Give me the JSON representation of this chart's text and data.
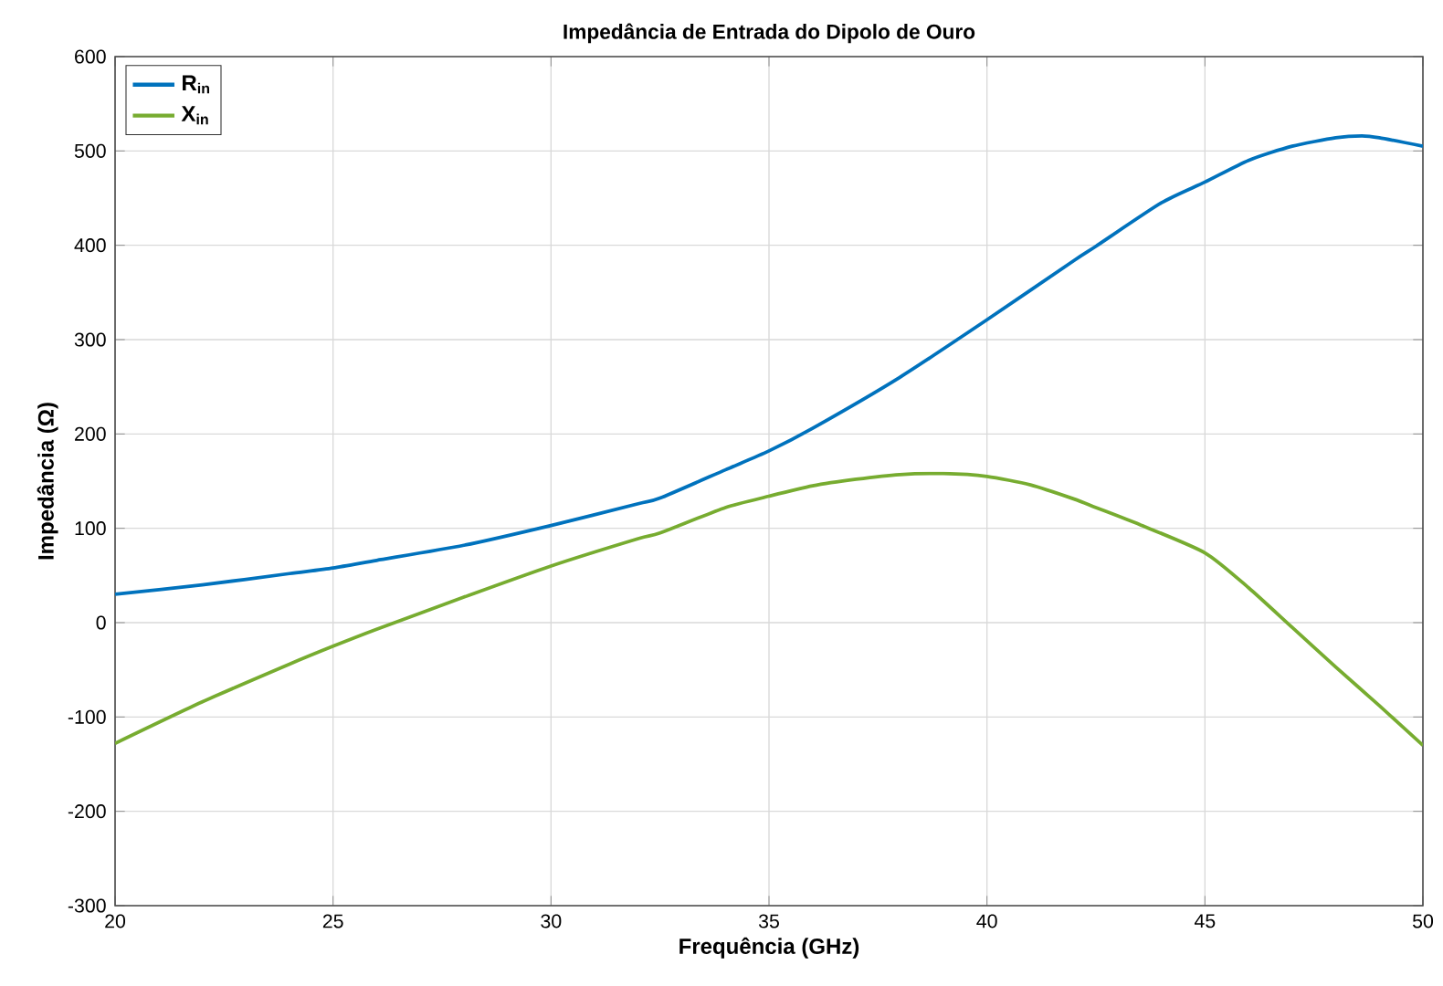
{
  "chart_data": {
    "type": "line",
    "title": "Impedância de Entrada do Dipolo de Ouro",
    "xlabel": "Frequência (GHz)",
    "ylabel": "Impedância (Ω)",
    "xlim": [
      20,
      50
    ],
    "ylim": [
      -300,
      600
    ],
    "xticks": [
      20,
      25,
      30,
      35,
      40,
      45,
      50
    ],
    "yticks": [
      -300,
      -200,
      -100,
      0,
      100,
      200,
      300,
      400,
      500,
      600
    ],
    "grid": true,
    "legend": "top left",
    "marker": "none",
    "line_style": "solid",
    "series": [
      {
        "name": "R$_{in}$",
        "color": "#0072bd",
        "x": [
          20,
          22,
          24,
          25,
          26,
          28,
          30,
          32,
          32.5,
          34,
          35,
          36,
          38,
          40,
          42,
          42.5,
          44,
          45,
          46,
          47,
          48,
          48.6,
          49,
          50
        ],
        "values": [
          30,
          40,
          52,
          58,
          66,
          82,
          103,
          126,
          132,
          162,
          182,
          206,
          260,
          321,
          384,
          399,
          445,
          467,
          490,
          505,
          514,
          516,
          514,
          505
        ]
      },
      {
        "name": "X$_{in}$",
        "color": "#77ac30",
        "x": [
          20,
          22,
          24,
          25,
          26,
          28,
          30,
          32,
          32.5,
          34,
          35,
          36,
          37,
          38,
          39,
          40,
          41,
          42,
          42.5,
          43.5,
          45,
          46,
          47,
          48,
          49,
          50
        ],
        "values": [
          -128,
          -84,
          -44,
          -25,
          -7,
          27,
          60,
          89,
          95,
          122,
          134,
          145,
          152,
          157,
          158,
          155,
          146,
          131,
          122,
          104,
          74,
          37,
          -5,
          -47,
          -88,
          -130
        ]
      }
    ]
  }
}
